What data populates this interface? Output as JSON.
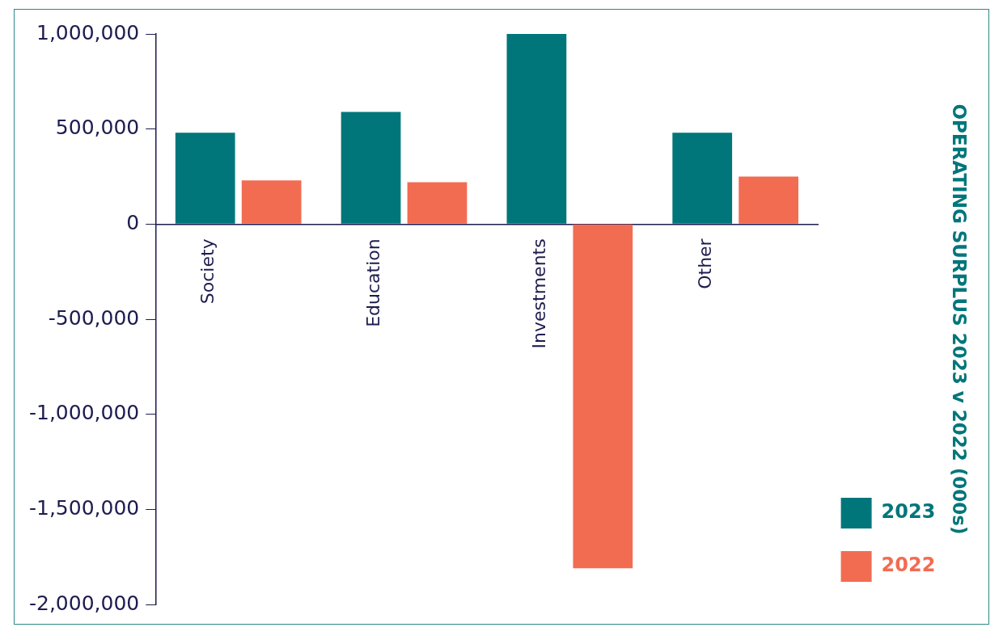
{
  "chart_data": {
    "type": "bar",
    "title": "OPERATING SURPLUS 2023 v 2022 (000s)",
    "categories": [
      "Society",
      "Education",
      "Investments",
      "Other"
    ],
    "series": [
      {
        "name": "2023",
        "color": "#00767a",
        "values": [
          480000,
          590000,
          1000000,
          480000
        ]
      },
      {
        "name": "2022",
        "color": "#f26c52",
        "values": [
          230000,
          220000,
          -1810000,
          250000
        ]
      }
    ],
    "ylim": [
      -2000000,
      1000000
    ],
    "yticks": [
      {
        "value": -2000000,
        "label": "-2,000,000"
      },
      {
        "value": -1500000,
        "label": "-1,500,000"
      },
      {
        "value": -1000000,
        "label": "-1,000,000"
      },
      {
        "value": -500000,
        "label": "-500,000"
      },
      0,
      {
        "value": 500000,
        "label": "500,000"
      },
      {
        "value": 1000000,
        "label": "1,000,000"
      }
    ],
    "grid": false,
    "legend": "lower right"
  }
}
